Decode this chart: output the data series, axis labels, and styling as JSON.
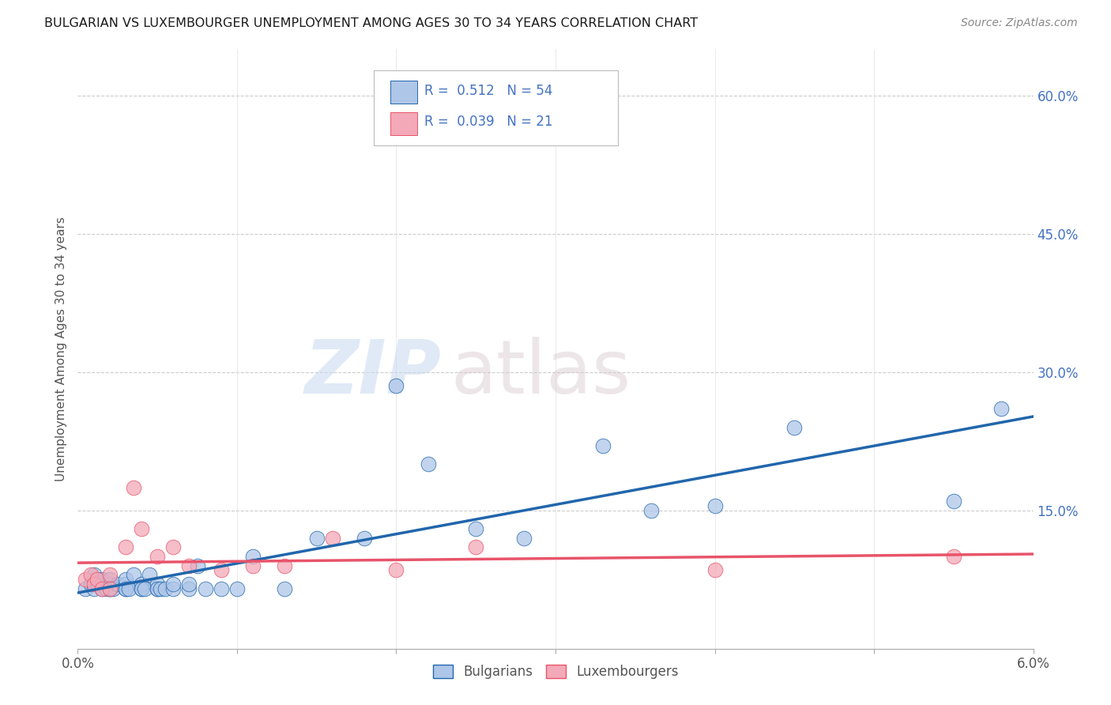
{
  "title": "BULGARIAN VS LUXEMBOURGER UNEMPLOYMENT AMONG AGES 30 TO 34 YEARS CORRELATION CHART",
  "source": "Source: ZipAtlas.com",
  "ylabel": "Unemployment Among Ages 30 to 34 years",
  "xlim": [
    0.0,
    0.06
  ],
  "ylim": [
    0.0,
    0.65
  ],
  "x_ticks": [
    0.0,
    0.01,
    0.02,
    0.03,
    0.04,
    0.05,
    0.06
  ],
  "x_tick_labels": [
    "0.0%",
    "",
    "",
    "",
    "",
    "",
    "6.0%"
  ],
  "y_ticks": [
    0.0,
    0.15,
    0.3,
    0.45,
    0.6
  ],
  "y_tick_labels": [
    "",
    "15.0%",
    "30.0%",
    "45.0%",
    "60.0%"
  ],
  "bulgarian_color": "#aec6e8",
  "luxembourger_color": "#f4a9b8",
  "trend_bulgarian_color": "#2166ac",
  "trend_luxembourger_color": "#e8546a",
  "watermark_zip": "ZIP",
  "watermark_atlas": "atlas",
  "legend_R_bulgarian": "0.512",
  "legend_N_bulgarian": "54",
  "legend_R_luxembourger": "0.039",
  "legend_N_luxembourger": "21",
  "bulgarians_label": "Bulgarians",
  "luxembourgers_label": "Luxembourgers",
  "bulgarian_x": [
    0.0005,
    0.0008,
    0.001,
    0.001,
    0.001,
    0.0012,
    0.0015,
    0.0015,
    0.0018,
    0.002,
    0.002,
    0.002,
    0.002,
    0.002,
    0.0022,
    0.0025,
    0.003,
    0.003,
    0.003,
    0.003,
    0.0032,
    0.0035,
    0.004,
    0.004,
    0.004,
    0.0042,
    0.0045,
    0.005,
    0.005,
    0.005,
    0.0052,
    0.0055,
    0.006,
    0.006,
    0.007,
    0.007,
    0.0075,
    0.008,
    0.009,
    0.01,
    0.011,
    0.013,
    0.015,
    0.018,
    0.02,
    0.022,
    0.025,
    0.028,
    0.033,
    0.036,
    0.04,
    0.045,
    0.055,
    0.058
  ],
  "bulgarian_y": [
    0.065,
    0.07,
    0.065,
    0.075,
    0.08,
    0.07,
    0.065,
    0.075,
    0.065,
    0.07,
    0.065,
    0.07,
    0.075,
    0.065,
    0.065,
    0.07,
    0.065,
    0.07,
    0.075,
    0.065,
    0.065,
    0.08,
    0.065,
    0.07,
    0.065,
    0.065,
    0.08,
    0.065,
    0.07,
    0.065,
    0.065,
    0.065,
    0.065,
    0.07,
    0.065,
    0.07,
    0.09,
    0.065,
    0.065,
    0.065,
    0.1,
    0.065,
    0.12,
    0.12,
    0.285,
    0.2,
    0.13,
    0.12,
    0.22,
    0.15,
    0.155,
    0.24,
    0.16,
    0.26
  ],
  "luxembourger_x": [
    0.0005,
    0.0008,
    0.001,
    0.0012,
    0.0015,
    0.002,
    0.002,
    0.003,
    0.0035,
    0.004,
    0.005,
    0.006,
    0.007,
    0.009,
    0.011,
    0.013,
    0.016,
    0.02,
    0.025,
    0.04,
    0.055
  ],
  "luxembourger_y": [
    0.075,
    0.08,
    0.07,
    0.075,
    0.065,
    0.08,
    0.065,
    0.11,
    0.175,
    0.13,
    0.1,
    0.11,
    0.09,
    0.085,
    0.09,
    0.09,
    0.12,
    0.085,
    0.11,
    0.085,
    0.1
  ]
}
